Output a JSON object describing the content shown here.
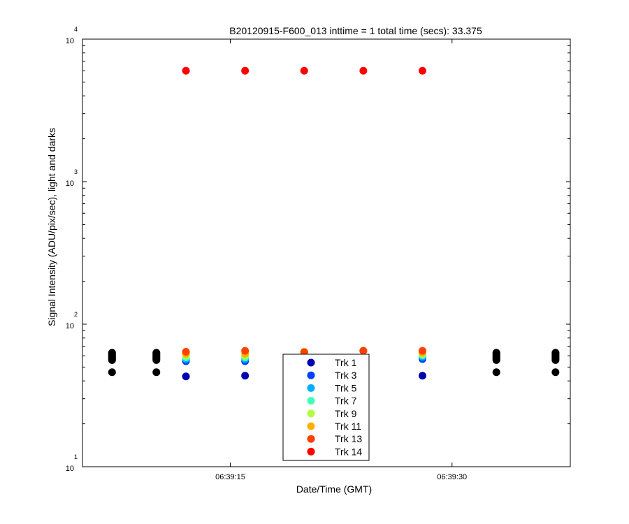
{
  "chart_data": {
    "type": "scatter",
    "title": "B20120915-F600_013 inttime = 1 total time (secs): 33.375",
    "xlabel": "Date/Time (GMT)",
    "ylabel": "Signal Intensity (ADU/pix/sec), light and darks",
    "xlim": [
      "06:39:05",
      "06:39:38"
    ],
    "ylim": [
      10,
      10000
    ],
    "yscale": "log",
    "grid": false,
    "legend_position": "bottom-center",
    "x_ticks": [
      {
        "time": "06:39:15",
        "label": "06:39:15"
      },
      {
        "time": "06:39:30",
        "label": "06:39:30"
      }
    ],
    "y_ticks": [
      {
        "value": 10,
        "base": "10",
        "exp": "1"
      },
      {
        "value": 100,
        "base": "10",
        "exp": "2"
      },
      {
        "value": 1000,
        "base": "10",
        "exp": "3"
      },
      {
        "value": 10000,
        "base": "10",
        "exp": "4"
      }
    ],
    "light_times": [
      "06:39:12",
      "06:39:16",
      "06:39:20",
      "06:39:24",
      "06:39:28"
    ],
    "dark_times": [
      "06:39:07",
      "06:39:10",
      "06:39:33",
      "06:39:37"
    ],
    "dark_series": {
      "color": "#000000",
      "values": [
        46,
        56,
        57,
        58,
        59,
        60,
        61,
        62,
        63
      ]
    },
    "series": [
      {
        "name": "Trk 1",
        "color": "#0000b0",
        "values": [
          43,
          43.5,
          43.5,
          43.5,
          43.5
        ]
      },
      {
        "name": "Trk 3",
        "color": "#0040ff",
        "values": [
          55,
          55,
          64,
          65,
          57
        ]
      },
      {
        "name": "Trk 5",
        "color": "#00b0ff",
        "values": [
          57,
          57,
          64,
          65,
          59
        ]
      },
      {
        "name": "Trk 7",
        "color": "#40ffc0",
        "values": [
          58.5,
          58.5,
          64,
          65,
          60.5
        ]
      },
      {
        "name": "Trk 9",
        "color": "#b0ff40",
        "values": [
          60,
          60,
          64,
          65,
          62
        ]
      },
      {
        "name": "Trk 11",
        "color": "#ffb000",
        "values": [
          62,
          62,
          64,
          65,
          63
        ]
      },
      {
        "name": "Trk 13",
        "color": "#ff4000",
        "values": [
          64,
          65,
          63.5,
          65,
          65
        ]
      },
      {
        "name": "Trk 14",
        "color": "#ff0000",
        "values": [
          6000,
          6000,
          6000,
          6000,
          6000
        ]
      }
    ]
  }
}
